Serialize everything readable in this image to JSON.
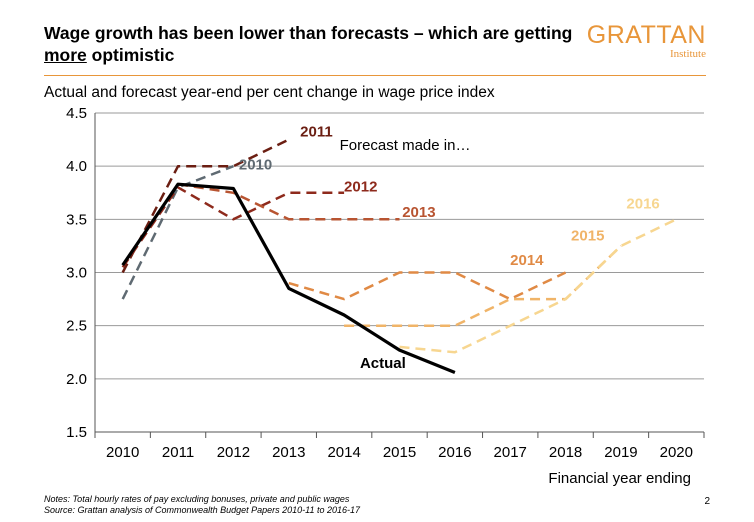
{
  "header": {
    "title_part1": "Wage growth has been lower than forecasts – which are getting ",
    "title_emph": "more",
    "title_part2": " optimistic",
    "logo_main": "GRATTAN",
    "logo_sub": "Institute",
    "subtitle": "Actual and forecast year-end per cent change in wage price index"
  },
  "footer": {
    "notes": "Notes:  Total hourly rates of pay excluding bonuses, private and public wages",
    "source": "Source: Grattan analysis of Commonwealth Budget Papers 2010-11 to 2016-17",
    "page": "2"
  },
  "chart_data": {
    "type": "line",
    "xlabel": "Financial year ending",
    "x_ticks": [
      "2010",
      "2011",
      "2012",
      "2013",
      "2014",
      "2015",
      "2016",
      "2017",
      "2018",
      "2019",
      "2020"
    ],
    "y_ticks": [
      "1.5",
      "2.0",
      "2.5",
      "3.0",
      "3.5",
      "4.0",
      "4.5"
    ],
    "ylim": [
      1.5,
      4.5
    ],
    "xlim": [
      2010,
      2020
    ],
    "grid": true,
    "annotation": "Forecast made in…",
    "series": [
      {
        "name": "2010",
        "color": "#5f6a72",
        "dashed": true,
        "label_at": [
          2012.4,
          3.97
        ],
        "points": [
          [
            2010,
            2.75
          ],
          [
            2011,
            3.8
          ],
          [
            2012,
            4.0
          ]
        ]
      },
      {
        "name": "2011",
        "color": "#6b1e12",
        "dashed": true,
        "label_at": [
          2013.5,
          4.28
        ],
        "points": [
          [
            2010,
            3.0
          ],
          [
            2011,
            4.0
          ],
          [
            2012,
            4.0
          ],
          [
            2013,
            4.25
          ]
        ]
      },
      {
        "name": "2012",
        "color": "#8e2a1c",
        "dashed": true,
        "label_at": [
          2014.3,
          3.76
        ],
        "points": [
          [
            2010,
            3.05
          ],
          [
            2011,
            3.8
          ],
          [
            2012,
            3.5
          ],
          [
            2013,
            3.75
          ],
          [
            2014,
            3.75
          ]
        ]
      },
      {
        "name": "2013",
        "color": "#b85431",
        "dashed": true,
        "label_at": [
          2015.35,
          3.52
        ],
        "points": [
          [
            2011,
            3.83
          ],
          [
            2012,
            3.75
          ],
          [
            2013,
            3.5
          ],
          [
            2014,
            3.5
          ],
          [
            2015,
            3.5
          ]
        ]
      },
      {
        "name": "2014",
        "color": "#e08a45",
        "dashed": true,
        "label_at": [
          2017.3,
          3.07
        ],
        "points": [
          [
            2013,
            2.9
          ],
          [
            2014,
            2.75
          ],
          [
            2015,
            3.0
          ],
          [
            2016,
            3.0
          ],
          [
            2017,
            2.75
          ],
          [
            2018,
            3.0
          ]
        ]
      },
      {
        "name": "2015",
        "color": "#f0b468",
        "dashed": true,
        "label_at": [
          2018.4,
          3.3
        ],
        "points": [
          [
            2014,
            2.5
          ],
          [
            2015,
            2.5
          ],
          [
            2016,
            2.5
          ],
          [
            2017,
            2.75
          ],
          [
            2018,
            2.75
          ],
          [
            2019,
            3.25
          ]
        ]
      },
      {
        "name": "2016",
        "color": "#f7d690",
        "dashed": true,
        "label_at": [
          2019.4,
          3.6
        ],
        "points": [
          [
            2015,
            2.3
          ],
          [
            2016,
            2.25
          ],
          [
            2017,
            2.5
          ],
          [
            2018,
            2.75
          ],
          [
            2019,
            3.25
          ],
          [
            2020,
            3.5
          ]
        ]
      },
      {
        "name": "Actual",
        "color": "#000000",
        "dashed": false,
        "label_at": [
          2014.7,
          2.1
        ],
        "points": [
          [
            2010,
            3.07
          ],
          [
            2011,
            3.83
          ],
          [
            2012,
            3.79
          ],
          [
            2013,
            2.85
          ],
          [
            2014,
            2.6
          ],
          [
            2015,
            2.27
          ],
          [
            2016,
            2.06
          ]
        ]
      }
    ]
  }
}
